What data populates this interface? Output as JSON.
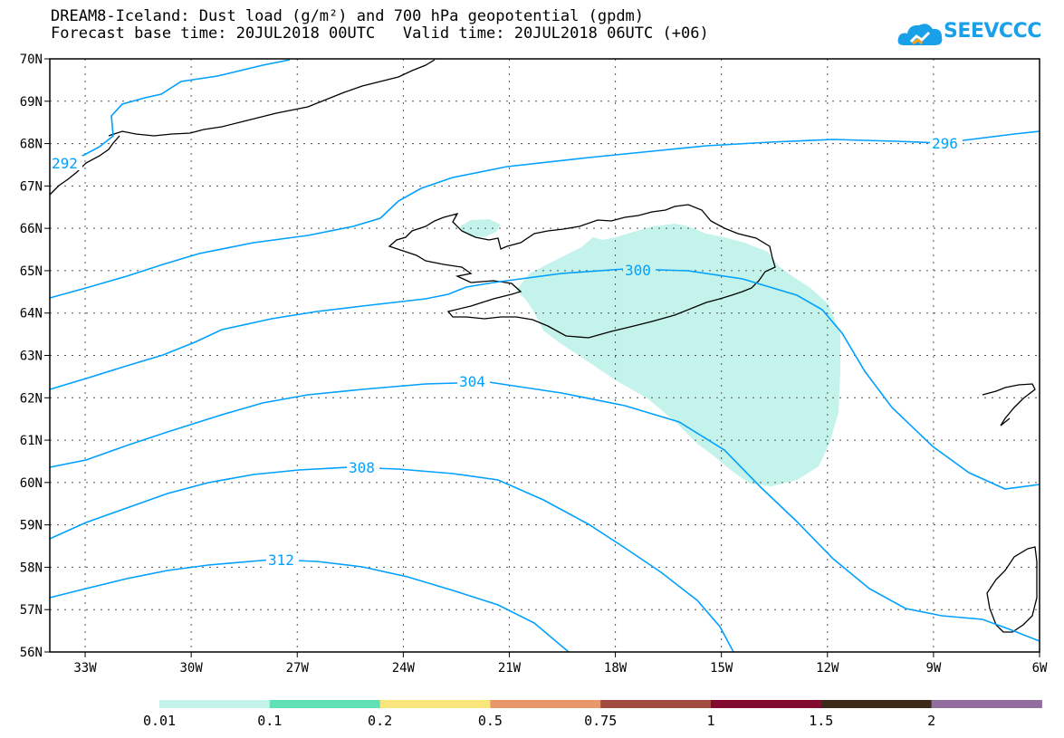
{
  "header": {
    "title_line1": "DREAM8-Iceland: Dust load (g/m²) and 700 hPa geopotential (gpdm)",
    "title_line2": "Forecast base time: 20JUL2018 00UTC   Valid time: 20JUL2018 06UTC (+06)"
  },
  "logo": {
    "text": "SEEVCCC",
    "icon": "cloud-icon",
    "color": "#1aa0e8"
  },
  "map": {
    "lon_range": [
      -34,
      -6
    ],
    "lat_range": [
      56,
      70
    ],
    "x_ticks": [
      "33W",
      "30W",
      "27W",
      "24W",
      "21W",
      "18W",
      "15W",
      "12W",
      "9W",
      "6W"
    ],
    "y_ticks": [
      "70N",
      "69N",
      "68N",
      "67N",
      "66N",
      "65N",
      "64N",
      "63N",
      "62N",
      "61N",
      "60N",
      "59N",
      "58N",
      "57N",
      "56N"
    ],
    "contour_color": "#00a0ff",
    "contour_labels": [
      "292",
      "296",
      "300",
      "304",
      "308",
      "312"
    ]
  },
  "colorbar": {
    "colors": [
      "#c3f3ea",
      "#5fe0b5",
      "#f8e67a",
      "#e9976a",
      "#a04a40",
      "#820a2e",
      "#3b2a1a",
      "#926e9e"
    ],
    "labels": [
      "0.01",
      "0.1",
      "0.2",
      "0.5",
      "0.75",
      "1",
      "1.5",
      "2"
    ]
  }
}
